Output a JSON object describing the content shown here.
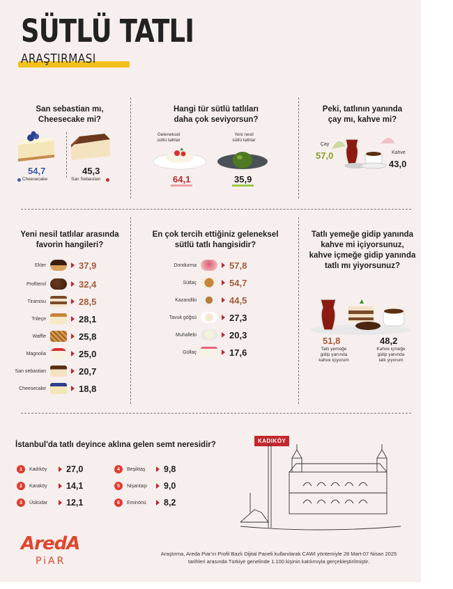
{
  "header": {
    "title": "SÜTLÜ TATLI",
    "subtitle": "ARAŞTIRMASI"
  },
  "colors": {
    "background": "#f7efed",
    "accent_red": "#c1272d",
    "accent_brown": "#a55b3a",
    "highlight_yellow": "#f2c11e",
    "blue": "#3a5aa8",
    "green": "#5a7a22"
  },
  "sections": {
    "sebastian": {
      "question": [
        "San sebastian mı,",
        "Cheesecake mi?"
      ],
      "a_value": "54,7",
      "a_label": "Cheesecake",
      "b_value": "45,3",
      "b_label": "San Sebastian"
    },
    "type": {
      "question": [
        "Hangi tür sütlü tatlıları",
        "daha çok seviyorsun?"
      ],
      "a_label": [
        "Geleneksel",
        "sütlü tatlılar"
      ],
      "a_value": "64,1",
      "b_label": [
        "Yeni nesil",
        "sütlü tatlılar"
      ],
      "b_value": "35,9"
    },
    "drink": {
      "question": [
        "Peki, tatlının yanında",
        "çay mı, kahve mi?"
      ],
      "a_label": "Çay",
      "a_value": "57,0",
      "b_label": "Kahve",
      "b_value": "43,0"
    },
    "new_gen": {
      "question": [
        "Yeni nesil tatlılar arasında",
        "favorin hangileri?"
      ],
      "items": [
        {
          "label": "Ekler",
          "value": "37,9",
          "icon": "ekler-icon"
        },
        {
          "label": "Profiterol",
          "value": "32,4",
          "icon": "profiterol-icon"
        },
        {
          "label": "Tiramisu",
          "value": "28,5",
          "icon": "tiramisu-icon"
        },
        {
          "label": "Trileçe",
          "value": "28,1",
          "icon": "trilece-icon"
        },
        {
          "label": "Waffle",
          "value": "25,8",
          "icon": "waffle-icon"
        },
        {
          "label": "Magnolia",
          "value": "25,0",
          "icon": "magnolia-icon"
        },
        {
          "label": "San sebastian",
          "value": "20,7",
          "icon": "san-sebastian-icon"
        },
        {
          "label": "Cheesecake",
          "value": "18,8",
          "icon": "cheesecake-icon"
        }
      ]
    },
    "traditional": {
      "question": [
        "En çok tercih ettiğiniz geleneksel",
        "sütlü tatlı hangisidir?"
      ],
      "items": [
        {
          "label": "Dondurma",
          "value": "57,8",
          "icon": "dondurma-icon"
        },
        {
          "label": "Sütlaç",
          "value": "54,7",
          "icon": "sutlac-icon"
        },
        {
          "label": "Kazandibi",
          "value": "44,5",
          "icon": "kazandibi-icon"
        },
        {
          "label": "Tavuk göğsü",
          "value": "27,3",
          "icon": "tavuk-gogsu-icon"
        },
        {
          "label": "Muhallebi",
          "value": "20,3",
          "icon": "muhallebi-icon"
        },
        {
          "label": "Güllaç",
          "value": "17,6",
          "icon": "gullac-icon"
        }
      ]
    },
    "coffee": {
      "question": [
        "Tatlı yemeğe gidip yanında",
        "kahve mi içiyorsunuz,",
        "kahve içmeğe gidip yanında",
        "tatlı mı yiyorsunuz?"
      ],
      "a_value": "51,8",
      "a_label": [
        "Tatlı yemeğe",
        "gidip yanında",
        "kahve içiyorum"
      ],
      "b_value": "48,2",
      "b_label": [
        "Kahve içmeğe",
        "gidip yanında",
        "tatlı yiyorum"
      ]
    },
    "districts": {
      "question": "İstanbul'da tatlı deyince aklına gelen semt neresidir?",
      "sign": "KADIKÖY",
      "items": [
        {
          "rank": "1",
          "label": "Kadıköy",
          "value": "27,0"
        },
        {
          "rank": "2",
          "label": "Karaköy",
          "value": "14,1"
        },
        {
          "rank": "3",
          "label": "Üsküdar",
          "value": "12,1"
        },
        {
          "rank": "4",
          "label": "Beşiktaş",
          "value": "9,8"
        },
        {
          "rank": "5",
          "label": "Nişantaşı",
          "value": "9,0"
        },
        {
          "rank": "6",
          "label": "Eminönü",
          "value": "8,2"
        }
      ]
    }
  },
  "footer": [
    "Araştırma, Areda Piar'ın Profil Bazlı Dijital Paneli kullanılarak CAWI yöntemiyle 28 Mart-07 Nisan 2025",
    "tarihleri arasında Türkiye genelinde 1.100 kişinin katılımıyla gerçekleştirilmiştir."
  ],
  "logo": {
    "line1": "AredA",
    "line2": "PiAR"
  }
}
